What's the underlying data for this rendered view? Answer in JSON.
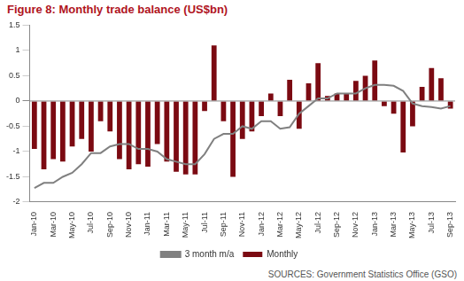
{
  "chart_data": {
    "type": "bar",
    "title": "Figure 8: Monthly trade balance (US$bn)",
    "source": "SOURCES: Government Statistics Office (GSO)",
    "categories": [
      "Jan-10",
      null,
      "Mar-10",
      null,
      "May-10",
      null,
      "Jul-10",
      null,
      "Sep-10",
      null,
      "Nov-10",
      null,
      "Jan-11",
      null,
      "Mar-11",
      null,
      "May-11",
      null,
      "Jul-11",
      null,
      "Sep-11",
      null,
      "Nov-11",
      null,
      "Jan-12",
      null,
      "Mar-12",
      null,
      "May-12",
      null,
      "Jul-12",
      null,
      "Sep-12",
      null,
      "Nov-12",
      null,
      "Jan-13",
      null,
      "Mar-13",
      null,
      "May-13",
      null,
      "Jul-13",
      null,
      "Sep-13"
    ],
    "series": [
      {
        "name": "Monthly",
        "type": "bar",
        "color": "#7b0a12",
        "values": [
          -0.95,
          -1.35,
          -1.15,
          -1.2,
          -0.9,
          -0.75,
          -1.0,
          -0.4,
          -0.6,
          -1.15,
          -1.35,
          -1.25,
          -1.3,
          -0.85,
          -1.2,
          -1.4,
          -1.45,
          -1.45,
          -0.2,
          1.1,
          -0.4,
          -1.5,
          -0.75,
          -0.6,
          -0.3,
          0.15,
          -0.3,
          0.42,
          -0.55,
          0.35,
          0.75,
          0.1,
          0.15,
          0.15,
          0.4,
          0.5,
          0.8,
          -0.1,
          -0.25,
          -1.02,
          -0.5,
          0.28,
          0.65,
          0.45,
          -0.15
        ]
      },
      {
        "name": "3 month m/a",
        "type": "line",
        "color": "#808080",
        "values": [
          -1.72,
          -1.62,
          -1.62,
          -1.5,
          -1.42,
          -1.25,
          -1.03,
          -1.03,
          -0.9,
          -0.85,
          -0.85,
          -0.95,
          -0.95,
          -1.0,
          -1.15,
          -1.2,
          -1.25,
          -1.25,
          -1.05,
          -0.75,
          -0.65,
          -0.65,
          -0.5,
          -0.55,
          -0.4,
          -0.4,
          -0.55,
          -0.52,
          -0.25,
          -0.1,
          0.05,
          0.05,
          0.15,
          0.15,
          0.15,
          0.25,
          0.32,
          0.32,
          0.3,
          0.2,
          -0.05,
          -0.1,
          -0.12,
          -0.15,
          -0.1
        ]
      }
    ],
    "ylim": [
      -2,
      1.5
    ],
    "yticks": [
      -2,
      -1.5,
      -1,
      -0.5,
      0,
      0.5,
      1,
      1.5
    ],
    "grid": false,
    "legend": "bottom"
  }
}
